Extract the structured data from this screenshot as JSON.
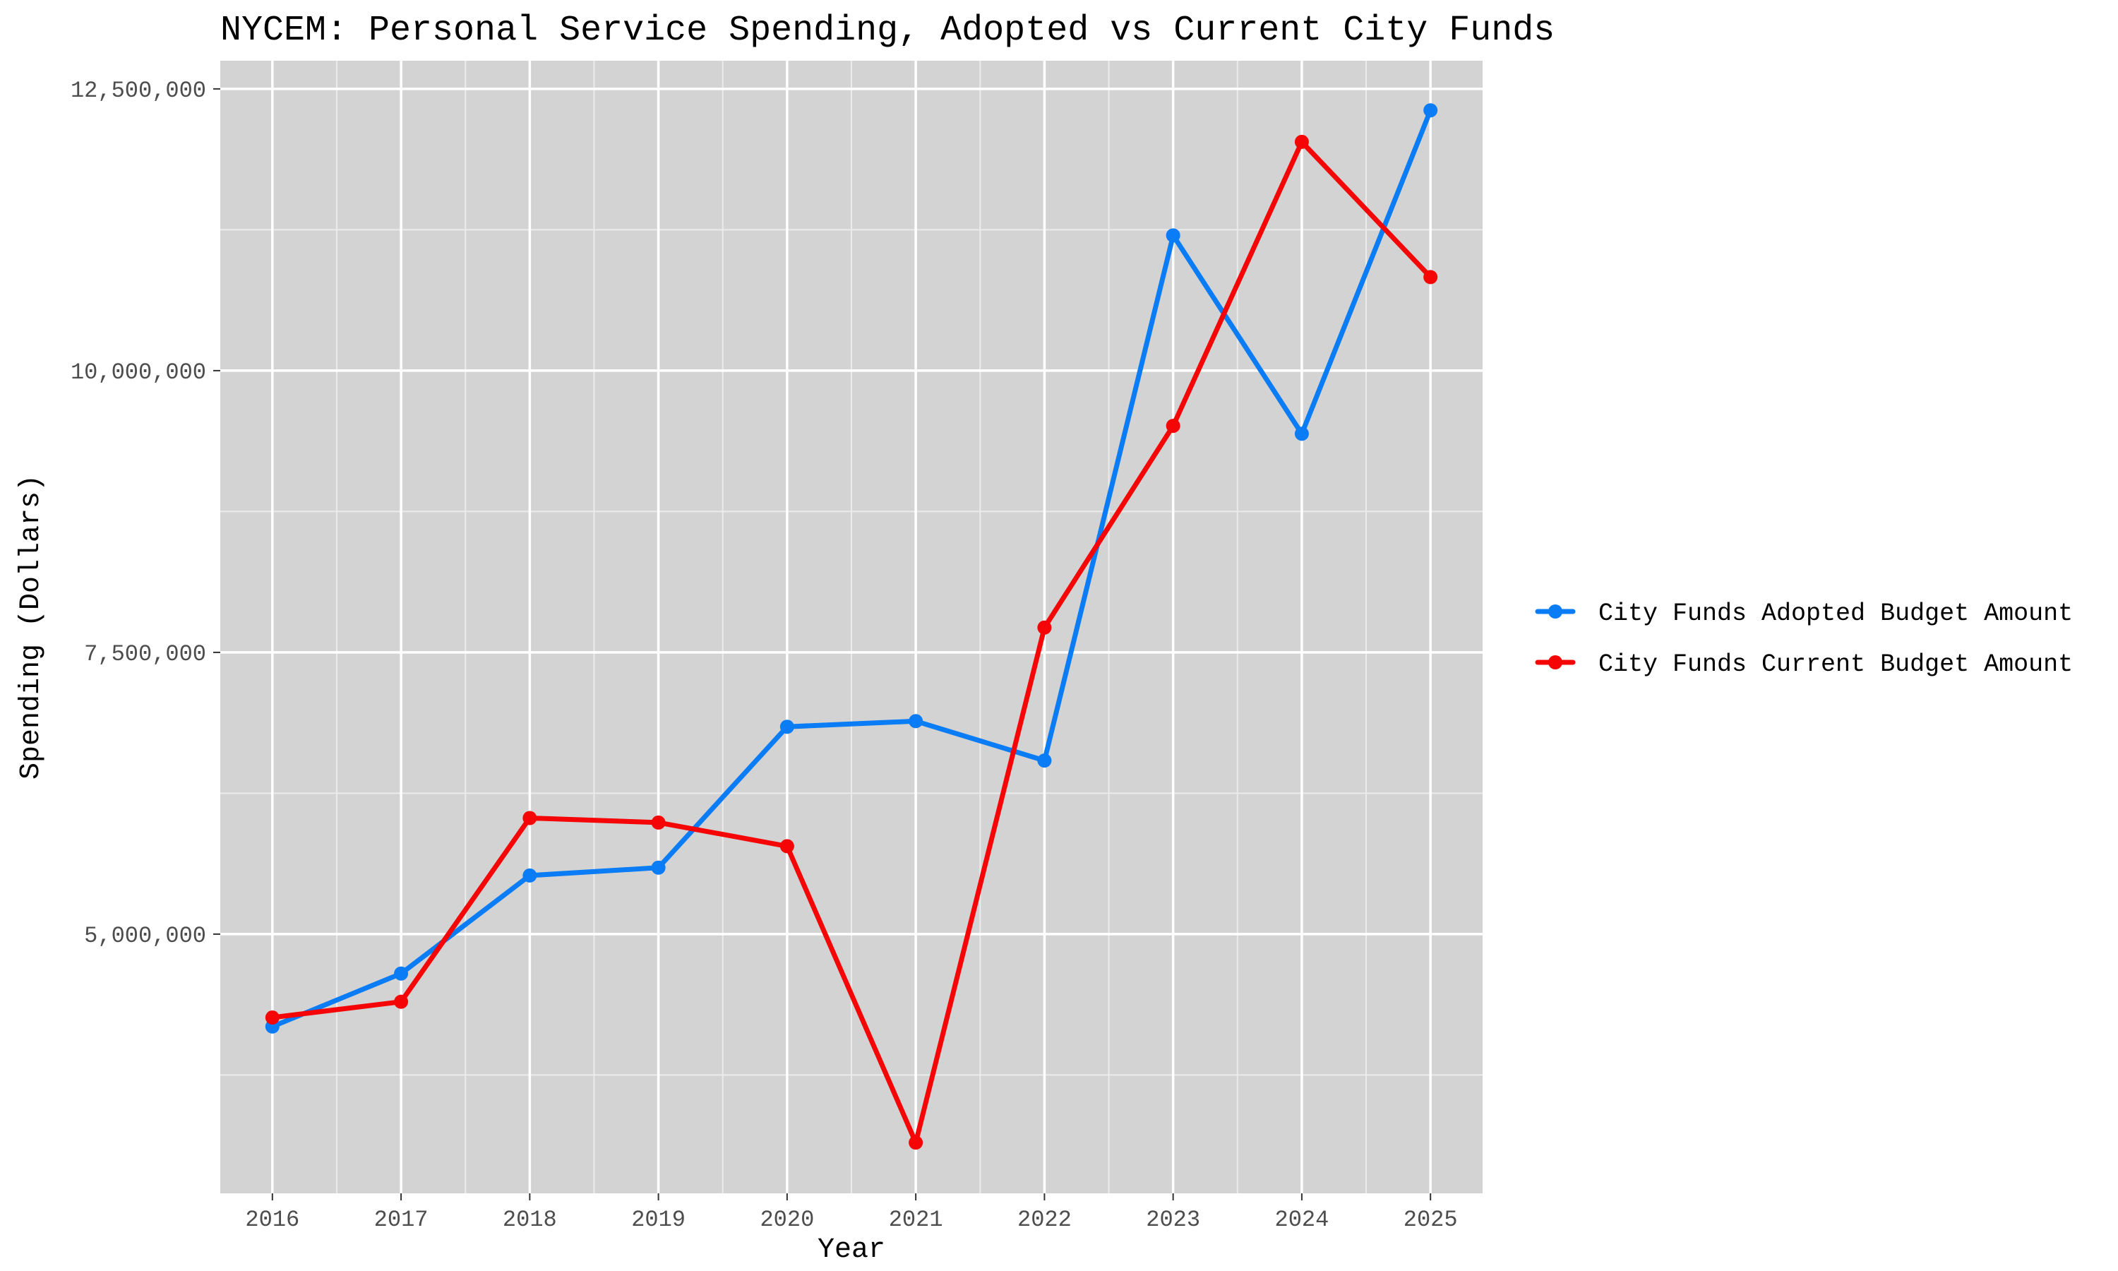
{
  "chart_data": {
    "type": "line",
    "title": "NYCEM: Personal Service Spending, Adopted vs Current City Funds",
    "xlabel": "Year",
    "ylabel": "Spending (Dollars)",
    "x": [
      2016,
      2017,
      2018,
      2019,
      2020,
      2021,
      2022,
      2023,
      2024,
      2025
    ],
    "x_ticks": [
      "2016",
      "2017",
      "2018",
      "2019",
      "2020",
      "2021",
      "2022",
      "2023",
      "2024",
      "2025"
    ],
    "y_ticks": [
      5000000,
      7500000,
      10000000,
      12500000
    ],
    "y_tick_labels": [
      "5,000,000",
      "7,500,000",
      "10,000,000",
      "12,500,000"
    ],
    "ylim": [
      2700000,
      12750000
    ],
    "grid": true,
    "legend_position": "right",
    "series": [
      {
        "name": "City Funds Adopted Budget Amount",
        "color": "#0a7cf5",
        "values": [
          4180000,
          4650000,
          5520000,
          5590000,
          6840000,
          6890000,
          6540000,
          11200000,
          9440000,
          12310000
        ]
      },
      {
        "name": "City Funds Current Budget Amount",
        "color": "#f50505",
        "values": [
          4260000,
          4400000,
          6030000,
          5990000,
          5780000,
          3150000,
          7720000,
          9510000,
          12030000,
          10830000
        ]
      }
    ]
  }
}
